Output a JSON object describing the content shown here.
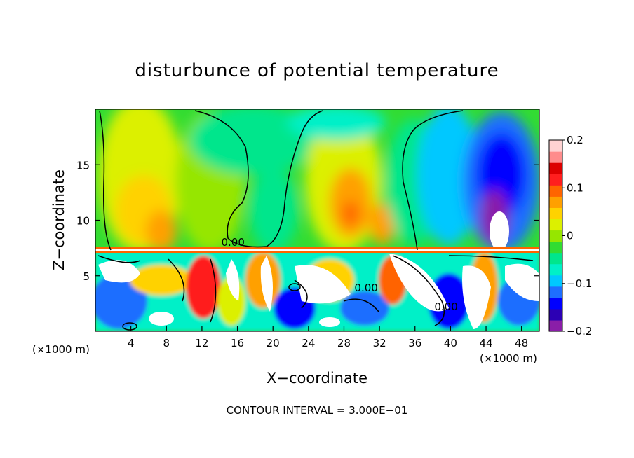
{
  "chart_data": {
    "type": "heatmap",
    "title": "disturbunce of potential temperature",
    "xlabel": "X−coordinate",
    "ylabel": "Z−coordinate",
    "x_units": "(×1000 m)",
    "x_ticks": [
      4,
      8,
      12,
      16,
      20,
      24,
      28,
      32,
      36,
      40,
      44,
      48
    ],
    "y_ticks": [
      5,
      10,
      15
    ],
    "xlim": [
      0,
      50
    ],
    "ylim": [
      0,
      20
    ],
    "colorbar": {
      "ticks": [
        {
          "value": 0.2,
          "label": "0.2"
        },
        {
          "value": 0.1,
          "label": "0.1"
        },
        {
          "value": 0,
          "label": "0"
        },
        {
          "value": -0.1,
          "label": "−0.1"
        },
        {
          "value": -0.2,
          "label": "−0.2"
        }
      ],
      "range": [
        -0.2,
        0.2
      ],
      "colors": [
        "#8a1ea8",
        "#2c00b4",
        "#0000ff",
        "#1e6eff",
        "#00c8ff",
        "#00f0c8",
        "#00e68c",
        "#32dc32",
        "#96e600",
        "#dcf000",
        "#ffd200",
        "#ffa000",
        "#ff6400",
        "#ff1e1e",
        "#dc0000",
        "#ff8c8c",
        "#ffd2d2"
      ]
    },
    "contour_labels": [
      {
        "text": "0.00",
        "x": 15.5,
        "y": 8.0
      },
      {
        "text": "0.00",
        "x": 30.5,
        "y": 3.9
      },
      {
        "text": "0.00",
        "x": 39.5,
        "y": 2.2
      }
    ],
    "field_regions": [
      {
        "region": "upper-left warm",
        "x": [
          2,
          10
        ],
        "z": [
          8,
          19
        ],
        "value": 0.07
      },
      {
        "region": "upper-middle neutral",
        "x": [
          12,
          22
        ],
        "z": [
          8,
          20
        ],
        "value": 0.02
      },
      {
        "region": "upper warm plume",
        "x": [
          24,
          34
        ],
        "z": [
          8,
          19
        ],
        "value": 0.08
      },
      {
        "region": "upper-right cold",
        "x": [
          40,
          50
        ],
        "z": [
          8,
          19
        ],
        "value": -0.15
      },
      {
        "region": "lower layer mixed",
        "x": [
          0,
          50
        ],
        "z": [
          0,
          7
        ],
        "value": 0.0
      }
    ]
  },
  "footnote": "CONTOUR INTERVAL = 3.000E−01"
}
